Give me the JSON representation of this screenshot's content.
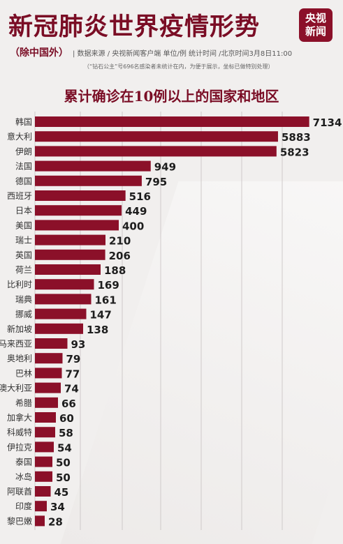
{
  "header": {
    "title": "新冠肺炎世界疫情形势",
    "logo_line1": "央视",
    "logo_line2": "新闻",
    "exclude_label": "（除中国外）",
    "meta_text": "| 数据来源 / 央视新闻客户端  单位/例  统计时间 /北京时间3月8日11:00",
    "note": "（“钻石公主”号696名感染者未统计在内，为便于展示，坐标已做特别处理）"
  },
  "colors": {
    "bar": "#8b1029",
    "title": "#7a0d25",
    "background": "#f1efee"
  },
  "chart_data": {
    "type": "bar",
    "orientation": "horizontal",
    "title": "累计确诊在10例以上的国家和地区",
    "categories": [
      "韩国",
      "意大利",
      "伊朗",
      "法国",
      "德国",
      "西班牙",
      "日本",
      "美国",
      "瑞士",
      "英国",
      "荷兰",
      "比利时",
      "瑞典",
      "挪威",
      "新加坡",
      "马来西亚",
      "奥地利",
      "巴林",
      "澳大利亚",
      "希腊",
      "加拿大",
      "科威特",
      "伊拉克",
      "泰国",
      "冰岛",
      "阿联酋",
      "印度",
      "黎巴嫩"
    ],
    "values": [
      7134,
      5883,
      5823,
      949,
      795,
      516,
      449,
      400,
      210,
      206,
      188,
      169,
      161,
      147,
      138,
      93,
      79,
      77,
      74,
      66,
      60,
      58,
      54,
      50,
      50,
      45,
      34,
      28
    ],
    "axis_note": "non-linear scale",
    "grid": true
  }
}
